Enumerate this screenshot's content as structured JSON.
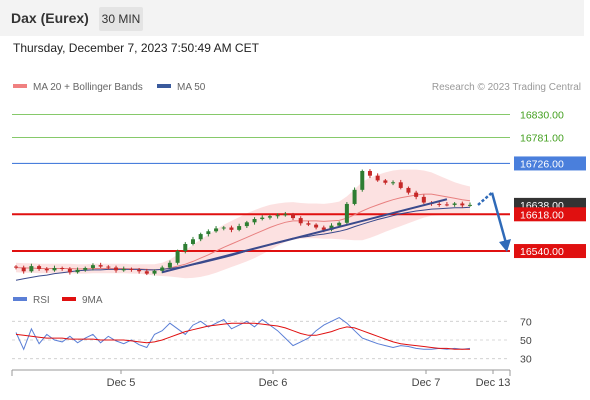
{
  "header": {
    "title": "Dax (Eurex)",
    "timeframe": "30 MIN"
  },
  "timestamp": "Thursday, December 7, 2023 7:50:49 AM CET",
  "colors": {
    "candle_up": "#2e7d32",
    "candle_down": "#c62828",
    "ma20": "#e88080",
    "band_fill": "#f9c9c9",
    "ma50": "#3a4a8c",
    "trendline": "#3a4a8c",
    "resistance_green": "#86c96a",
    "level_blue": "#4a7fdc",
    "level_red": "#e01010",
    "rsi": "#5b7fd6",
    "rsi_ma": "#e01010",
    "arrow": "#2f6ab8",
    "current_price_bg": "#333333"
  },
  "chart_data": [
    {
      "type": "line",
      "title": "",
      "legend": [
        {
          "name": "MA 20 + Bollinger Bands",
          "color": "#f08080"
        },
        {
          "name": "MA 50",
          "color": "#3a5a9c"
        }
      ],
      "copyright": "Research © 2023 Trading Central",
      "xlabels": [
        "Dec 5",
        "Dec 6",
        "Dec 7",
        "Dec 13"
      ],
      "ylim": [
        16470,
        16865
      ],
      "levels": [
        {
          "label": "16830.00",
          "value": 16830,
          "kind": "green-thin"
        },
        {
          "label": "16781.00",
          "value": 16781,
          "kind": "green-thin"
        },
        {
          "label": "16726.00",
          "value": 16726,
          "kind": "blue"
        },
        {
          "label": "16638.00",
          "value": 16638,
          "kind": "current"
        },
        {
          "label": "16618.00",
          "value": 16618,
          "kind": "red"
        },
        {
          "label": "16540.00",
          "value": 16540,
          "kind": "red"
        }
      ],
      "price_series": {
        "name": "",
        "close": [
          16505,
          16497,
          16508,
          16502,
          16499,
          16504,
          16502,
          16495,
          16500,
          16504,
          16510,
          16507,
          16505,
          16499,
          16502,
          16500,
          16497,
          16492,
          16498,
          16505,
          16515,
          16540,
          16555,
          16565,
          16576,
          16582,
          16588,
          16590,
          16585,
          16593,
          16601,
          16608,
          16611,
          16614,
          16616,
          16618,
          16610,
          16599,
          16596,
          16590,
          16585,
          16594,
          16600,
          16640,
          16670,
          16710,
          16700,
          16690,
          16685,
          16686,
          16674,
          16664,
          16655,
          16643,
          16640,
          16639,
          16638,
          16641,
          16637,
          16638
        ]
      },
      "ma20": [
        16505,
        16504,
        16504,
        16503,
        16503,
        16503,
        16503,
        16503,
        16502,
        16502,
        16503,
        16503,
        16503,
        16503,
        16503,
        16502,
        16502,
        16501,
        16500,
        16501,
        16504,
        16508,
        16512,
        16518,
        16525,
        16532,
        16540,
        16548,
        16555,
        16562,
        16569,
        16576,
        16583,
        16590,
        16596,
        16601,
        16604,
        16604,
        16604,
        16604,
        16603,
        16604,
        16605,
        16610,
        16617,
        16625,
        16632,
        16638,
        16644,
        16649,
        16653,
        16656,
        16659,
        16661,
        16661,
        16658,
        16655,
        16652,
        16649,
        16647
      ],
      "ma50": [
        16478,
        16481,
        16484,
        16487,
        16489,
        16492,
        16494,
        16496,
        16498,
        16499,
        16500,
        16500,
        16501,
        16501,
        16501,
        16501,
        16501,
        16500,
        16500,
        16501,
        16503,
        16505,
        16508,
        16511,
        16514,
        16518,
        16522,
        16526,
        16530,
        16535,
        16540,
        16545,
        16550,
        16554,
        16559,
        16563,
        16567,
        16569,
        16571,
        16574,
        16576,
        16579,
        16582,
        16586,
        16592,
        16597,
        16602,
        16607,
        16611,
        16615,
        16619,
        16622,
        16625,
        16627,
        16629,
        16630,
        16631,
        16632,
        16632,
        16633
      ],
      "band_halfwidth": [
        10,
        10,
        10,
        10,
        10,
        10,
        10,
        10,
        10,
        10,
        10,
        10,
        10,
        10,
        10,
        10,
        10,
        11,
        12,
        14,
        18,
        24,
        30,
        35,
        40,
        43,
        46,
        48,
        49,
        50,
        51,
        51,
        50,
        48,
        45,
        42,
        40,
        38,
        37,
        37,
        37,
        38,
        40,
        46,
        54,
        62,
        64,
        64,
        63,
        62,
        60,
        57,
        54,
        50,
        46,
        42,
        38,
        34,
        32,
        30
      ],
      "trendline": {
        "from": 16495,
        "to": 16650
      },
      "forecast": [
        16638,
        16664,
        16540
      ]
    },
    {
      "type": "line",
      "title": "",
      "legend": [
        {
          "name": "RSI",
          "color": "#5b7fd6"
        },
        {
          "name": "9MA",
          "color": "#e01010"
        }
      ],
      "ylim": [
        20,
        80
      ],
      "yticks": [
        "70",
        "50",
        "30"
      ],
      "series": [
        {
          "name": "RSI",
          "values": [
            58,
            40,
            62,
            46,
            56,
            50,
            48,
            54,
            47,
            52,
            56,
            47,
            54,
            49,
            46,
            50,
            45,
            42,
            56,
            60,
            68,
            62,
            56,
            66,
            70,
            64,
            68,
            72,
            62,
            66,
            70,
            64,
            72,
            66,
            60,
            52,
            44,
            48,
            52,
            60,
            66,
            70,
            74,
            68,
            60,
            52,
            49,
            46,
            44,
            42,
            44,
            43,
            41,
            40,
            40,
            41,
            40,
            41,
            40,
            41
          ]
        },
        {
          "name": "9MA",
          "values": [
            56,
            55,
            54,
            53,
            52,
            52,
            52,
            51,
            51,
            51,
            51,
            50,
            50,
            50,
            50,
            49,
            48,
            47,
            48,
            50,
            53,
            56,
            59,
            61,
            63,
            65,
            66,
            67,
            68,
            68,
            68,
            68,
            67,
            66,
            65,
            63,
            60,
            57,
            55,
            55,
            57,
            59,
            62,
            64,
            63,
            60,
            57,
            54,
            51,
            48,
            46,
            45,
            44,
            43,
            42,
            41,
            41,
            40,
            40,
            40
          ]
        }
      ]
    }
  ]
}
